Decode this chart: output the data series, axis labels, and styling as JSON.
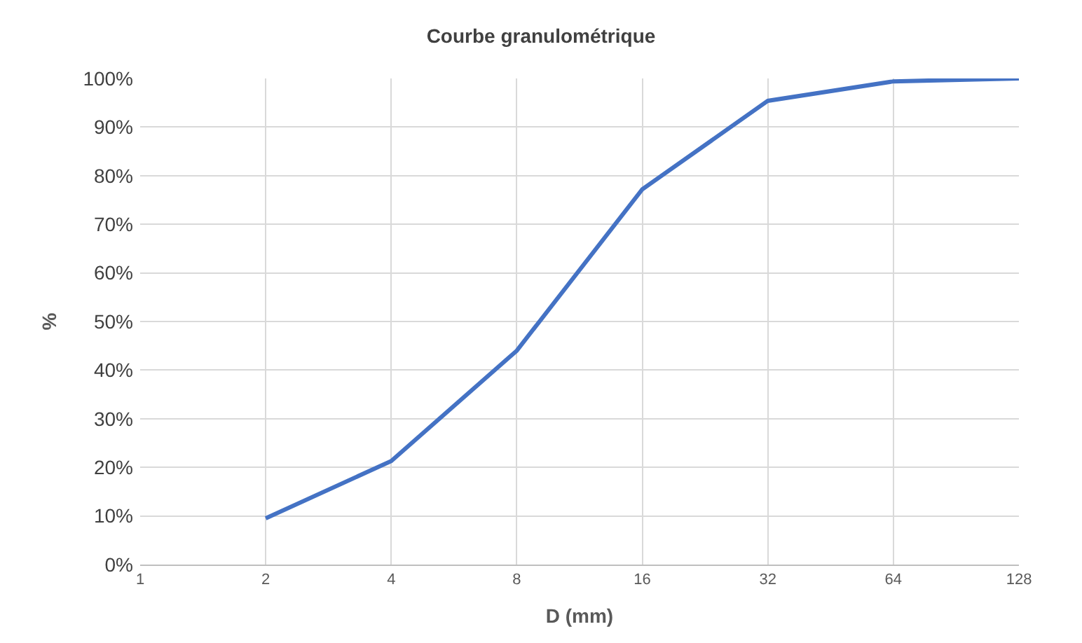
{
  "chart_data": {
    "type": "line",
    "title": "Courbe granulométrique",
    "xlabel": "D (mm)",
    "ylabel": "%",
    "categories": [
      "1",
      "2",
      "4",
      "8",
      "16",
      "32",
      "64",
      "128"
    ],
    "series": [
      {
        "color": "#4472c4",
        "values": [
          null,
          9.5,
          21.3,
          44,
          77.2,
          95.4,
          99.4,
          100
        ]
      }
    ],
    "ylim": [
      0,
      100
    ],
    "yticks": [
      {
        "value": 0,
        "label": "0%"
      },
      {
        "value": 10,
        "label": "10%"
      },
      {
        "value": 20,
        "label": "20%"
      },
      {
        "value": 30,
        "label": "30%"
      },
      {
        "value": 40,
        "label": "40%"
      },
      {
        "value": 50,
        "label": "50%"
      },
      {
        "value": 60,
        "label": "60%"
      },
      {
        "value": 70,
        "label": "70%"
      },
      {
        "value": 80,
        "label": "80%"
      },
      {
        "value": 90,
        "label": "90%"
      },
      {
        "value": 100,
        "label": "100%"
      }
    ],
    "grid": true,
    "marker": "none",
    "line_style": "solid"
  }
}
